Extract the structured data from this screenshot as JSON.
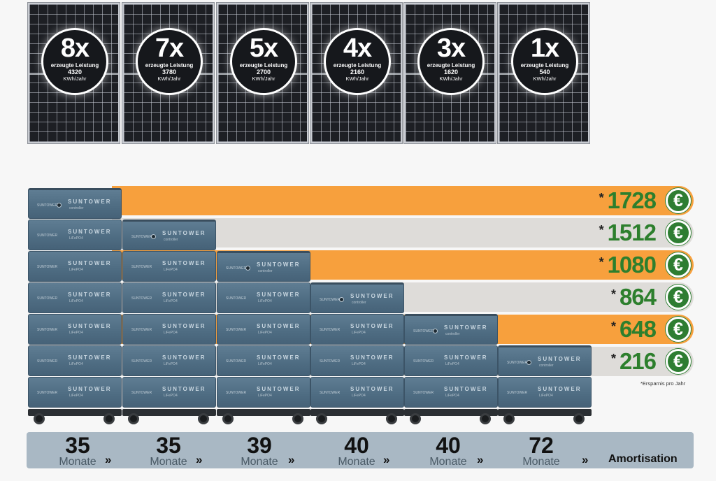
{
  "panels": [
    {
      "multiplier": "8x",
      "label": "erzeugte Leistung",
      "value": "4320",
      "unit": "KWh/Jahr"
    },
    {
      "multiplier": "7x",
      "label": "erzeugte Leistung",
      "value": "3780",
      "unit": "KWh/Jahr"
    },
    {
      "multiplier": "5x",
      "label": "erzeugte Leistung",
      "value": "2700",
      "unit": "KWh/Jahr"
    },
    {
      "multiplier": "4x",
      "label": "erzeugte Leistung",
      "value": "2160",
      "unit": "KWh/Jahr"
    },
    {
      "multiplier": "3x",
      "label": "erzeugte Leistung",
      "value": "1620",
      "unit": "KWh/Jahr"
    },
    {
      "multiplier": "1x",
      "label": "erzeugte Leistung",
      "value": "540",
      "unit": "KWh/Jahr"
    }
  ],
  "savings": [
    {
      "star": "*",
      "amount": "1728",
      "currency": "€"
    },
    {
      "star": "*",
      "amount": "1512",
      "currency": "€"
    },
    {
      "star": "*",
      "amount": "1080",
      "currency": "€"
    },
    {
      "star": "*",
      "amount": "864",
      "currency": "€"
    },
    {
      "star": "*",
      "amount": "648",
      "currency": "€"
    },
    {
      "star": "*",
      "amount": "216",
      "currency": "€"
    }
  ],
  "footnote": "*Ersparnis pro Jahr",
  "battery": {
    "brand": "SUNTOWER",
    "controller_sub": "controller",
    "module_sub": "LiFePO4",
    "tag": "SUNTOWER"
  },
  "amortisation": {
    "items": [
      {
        "months": "35",
        "unit": "Monate"
      },
      {
        "months": "35",
        "unit": "Monate"
      },
      {
        "months": "39",
        "unit": "Monate"
      },
      {
        "months": "40",
        "unit": "Monate"
      },
      {
        "months": "40",
        "unit": "Monate"
      },
      {
        "months": "72",
        "unit": "Monate"
      }
    ],
    "chevron": "»",
    "label": "Amortisation"
  },
  "colors": {
    "orange_bar": "#f7a03d",
    "grey_bar": "#dedcd9",
    "amount_green": "#2d7f2d",
    "battery_blue": "#56748a"
  }
}
